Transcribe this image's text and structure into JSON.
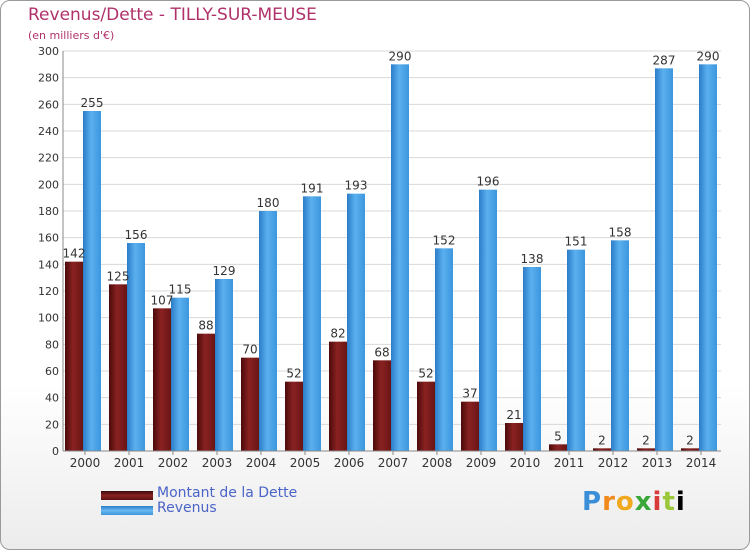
{
  "title": "Revenus/Dette - TILLY-SUR-MEUSE",
  "subtitle": "(en milliers d'€)",
  "logo": "Proxiti",
  "colors": {
    "dette": "#7a1a1a",
    "revenus": "#3c9be0",
    "grid": "#d8d8d8",
    "axis_text": "#333333",
    "title": "#b0316a"
  },
  "chart_data": {
    "type": "bar",
    "title": "Revenus/Dette - TILLY-SUR-MEUSE",
    "ylabel": "(en milliers d'€)",
    "ylim": [
      0,
      300
    ],
    "ytick_step": 20,
    "grid": true,
    "legend_position": "bottom-left",
    "categories": [
      "2000",
      "2001",
      "2002",
      "2003",
      "2004",
      "2005",
      "2006",
      "2007",
      "2008",
      "2009",
      "2010",
      "2011",
      "2012",
      "2013",
      "2014"
    ],
    "series": [
      {
        "name": "Montant de la Dette",
        "values": [
          142,
          125,
          107,
          88,
          70,
          52,
          82,
          68,
          52,
          37,
          21,
          5,
          2,
          2,
          2
        ]
      },
      {
        "name": "Revenus",
        "values": [
          255,
          156,
          115,
          129,
          180,
          191,
          193,
          290,
          152,
          196,
          138,
          151,
          158,
          287,
          290
        ]
      }
    ]
  }
}
